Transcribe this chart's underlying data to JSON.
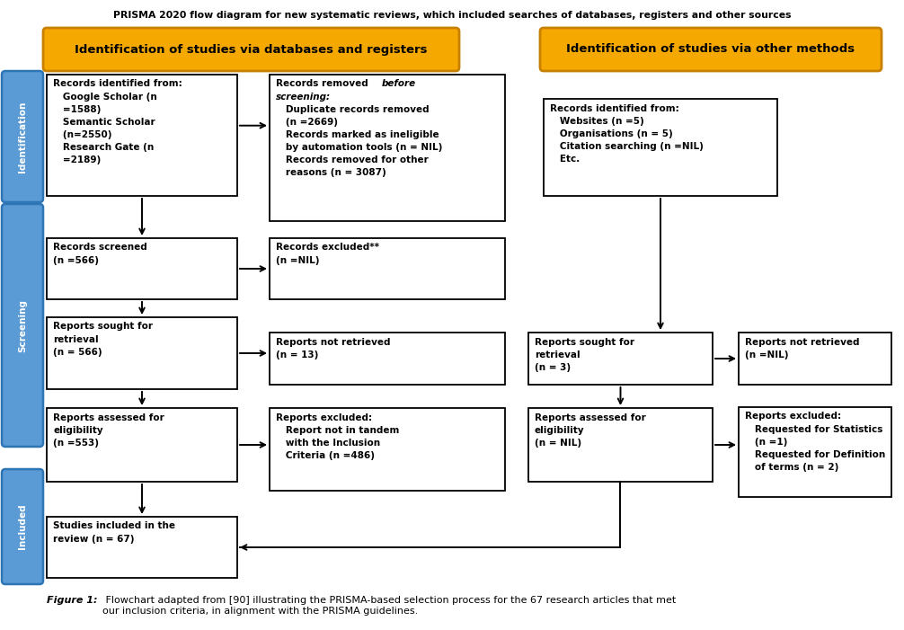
{
  "title": "PRISMA 2020 flow diagram for new systematic reviews, which included searches of databases, registers and other sources",
  "header_left": "Identification of studies via databases and registers",
  "header_right": "Identification of studies via other methods",
  "caption_bold": "Figure 1:",
  "caption_rest": " Flowchart adapted from [90] illustrating the PRISMA-based selection process for the 67 research articles that met\nour inclusion criteria, in alignment with the PRISMA guidelines.",
  "orange_color": "#F5A800",
  "orange_border": "#C88000",
  "blue_color": "#5B9BD5",
  "blue_border": "#2E75B6",
  "boxes": {
    "records_identified": "Records identified from:\n   Google Scholar (n\n   =1588)\n   Semantic Scholar\n   (n=2550)\n   Research Gate (n\n   =2189)",
    "records_removed_title": "Records removed ",
    "records_removed_title2": "before",
    "records_removed_title3": "screening:",
    "records_removed_body": "   Duplicate records removed\n   (n =2669)\n   Records marked as ineligible\n   by automation tools (n = NIL)\n   Records removed for other\n   reasons (n = 3087)",
    "records_other": "Records identified from:\n   Websites (n =5)\n   Organisations (n = 5)\n   Citation searching (n =NIL)\n   Etc.",
    "records_screened": "Records screened\n(n =566)",
    "records_excluded": "Records excluded**\n(n =NIL)",
    "reports_sought1": "Reports sought for\nretrieval\n(n = 566)",
    "reports_not_retrieved1": "Reports not retrieved\n(n = 13)",
    "reports_sought2": "Reports sought for\nretrieval\n(n = 3)",
    "reports_not_retrieved2": "Reports not retrieved\n(n =NIL)",
    "reports_assessed1": "Reports assessed for\neligibility\n(n =553)",
    "reports_excluded1": "Reports excluded:\n   Report not in tandem\n   with the Inclusion\n   Criteria (n =486)",
    "reports_assessed2": "Reports assessed for\neligibility\n(n = NIL)",
    "reports_excluded2": "Reports excluded:\n   Requested for Statistics\n   (n =1)\n   Requested for Definition\n   of terms (n = 2)",
    "studies_included": "Studies included in the\nreview (n = 67)"
  }
}
